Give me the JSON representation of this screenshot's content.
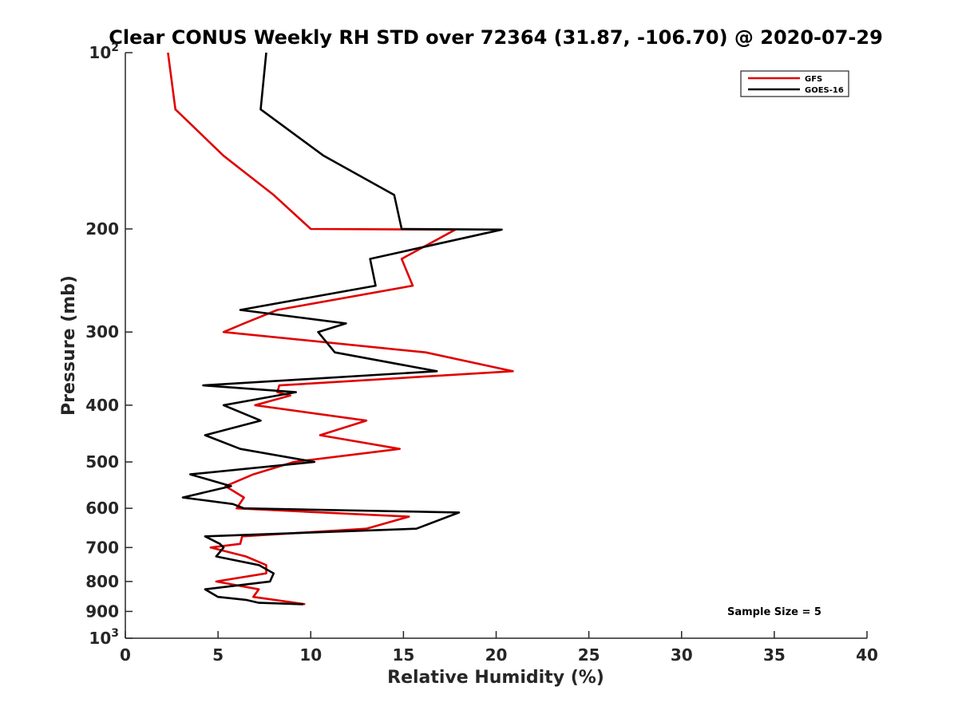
{
  "chart_data": {
    "type": "line",
    "title": "Clear CONUS Weekly RH STD over 72364 (31.87, -106.70) @ 2020-07-29",
    "xlabel": "Relative Humidity (%)",
    "ylabel": "Pressure (mb)",
    "xlim": [
      0,
      40
    ],
    "ylim": [
      100,
      1000
    ],
    "y_scale": "log",
    "y_reversed": true,
    "x_ticks": [
      "0",
      "5",
      "10",
      "15",
      "20",
      "25",
      "30",
      "35",
      "40"
    ],
    "y_ticks": [
      {
        "value": 100,
        "base": "10",
        "exp": "2"
      },
      {
        "value": 200,
        "label": "200"
      },
      {
        "value": 300,
        "label": "300"
      },
      {
        "value": 400,
        "label": "400"
      },
      {
        "value": 500,
        "label": "500"
      },
      {
        "value": 600,
        "label": "600"
      },
      {
        "value": 700,
        "label": "700"
      },
      {
        "value": 800,
        "label": "800"
      },
      {
        "value": 900,
        "label": "900"
      },
      {
        "value": 1000,
        "base": "10",
        "exp": "3"
      }
    ],
    "grid": false,
    "legend_position": "top-right",
    "annotation": "Sample Size = 5",
    "series": [
      {
        "name": "GFS",
        "color": "#e00000",
        "points": [
          [
            2.3,
            100
          ],
          [
            2.7,
            125
          ],
          [
            5.3,
            150
          ],
          [
            8,
            175
          ],
          [
            10,
            200
          ],
          [
            17.8,
            200.5
          ],
          [
            14.9,
            225
          ],
          [
            15.5,
            250
          ],
          [
            8.2,
            275
          ],
          [
            6.4,
            290
          ],
          [
            5.3,
            300
          ],
          [
            16.2,
            325
          ],
          [
            20.9,
            350
          ],
          [
            8.3,
            370
          ],
          [
            8.2,
            380
          ],
          [
            8.9,
            385
          ],
          [
            7,
            400
          ],
          [
            13,
            425
          ],
          [
            10.5,
            450
          ],
          [
            14.8,
            475
          ],
          [
            9.1,
            500
          ],
          [
            6.9,
            525
          ],
          [
            5.4,
            550
          ],
          [
            6.4,
            575
          ],
          [
            6,
            600
          ],
          [
            15.3,
            620
          ],
          [
            13,
            650
          ],
          [
            6.3,
            670
          ],
          [
            6.2,
            690
          ],
          [
            4.6,
            700
          ],
          [
            6.5,
            725
          ],
          [
            7.6,
            750
          ],
          [
            7.6,
            775
          ],
          [
            4.9,
            800
          ],
          [
            7.2,
            825
          ],
          [
            6.9,
            850
          ],
          [
            9.7,
            875
          ]
        ]
      },
      {
        "name": "GOES-16",
        "color": "#000000",
        "points": [
          [
            7.6,
            100
          ],
          [
            7.3,
            125
          ],
          [
            10.7,
            150
          ],
          [
            14.5,
            175
          ],
          [
            14.9,
            200
          ],
          [
            20.3,
            200.5
          ],
          [
            13.2,
            225
          ],
          [
            13.5,
            250
          ],
          [
            6.2,
            275
          ],
          [
            11.9,
            290
          ],
          [
            10.4,
            300
          ],
          [
            11.3,
            325
          ],
          [
            16.8,
            350
          ],
          [
            4.2,
            370
          ],
          [
            9.2,
            380
          ],
          [
            5.3,
            400
          ],
          [
            7.3,
            425
          ],
          [
            4.3,
            450
          ],
          [
            6.2,
            475
          ],
          [
            10.2,
            500
          ],
          [
            3.5,
            525
          ],
          [
            5.7,
            550
          ],
          [
            3.1,
            575
          ],
          [
            5.8,
            590
          ],
          [
            6.4,
            600
          ],
          [
            18,
            610
          ],
          [
            15.7,
            650
          ],
          [
            4.3,
            670
          ],
          [
            5.1,
            690
          ],
          [
            5.3,
            700
          ],
          [
            4.9,
            725
          ],
          [
            7.2,
            750
          ],
          [
            8,
            775
          ],
          [
            7.8,
            800
          ],
          [
            4.3,
            825
          ],
          [
            5,
            850
          ],
          [
            6.5,
            860
          ],
          [
            7.2,
            870
          ],
          [
            9.6,
            875
          ]
        ]
      }
    ]
  }
}
